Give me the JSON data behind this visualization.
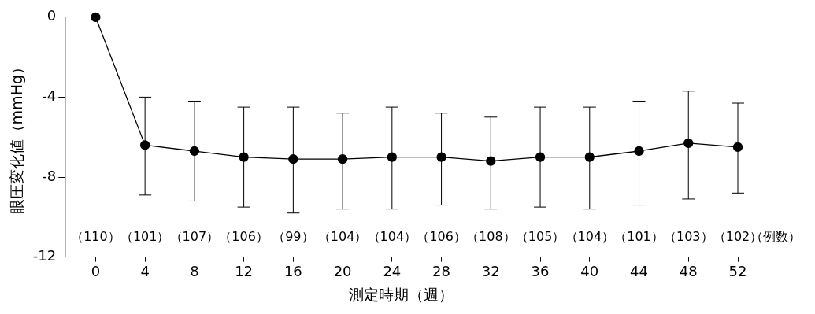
{
  "chart_data": {
    "type": "line",
    "xlabel": "測定時期（週）",
    "ylabel": "眼圧変化値（mmHg）",
    "x": [
      0,
      4,
      8,
      12,
      16,
      20,
      24,
      28,
      32,
      36,
      40,
      44,
      48,
      52
    ],
    "xlim": [
      -2.5,
      52
    ],
    "xticks": [
      0,
      4,
      8,
      12,
      16,
      20,
      24,
      28,
      32,
      36,
      40,
      44,
      48,
      52
    ],
    "ylim": [
      -12,
      0
    ],
    "yticks": [
      -12,
      -8,
      -4,
      0
    ],
    "series": [
      {
        "color": "#000000",
        "values": [
          0,
          -6.4,
          -6.7,
          -7.0,
          -7.1,
          -7.1,
          -7.0,
          -7.0,
          -7.2,
          -7.0,
          -7.0,
          -6.7,
          -6.3,
          -6.5
        ],
        "errors": [
          null,
          [
            -8.9,
            -4.0
          ],
          [
            -9.2,
            -4.2
          ],
          [
            -9.5,
            -4.5
          ],
          [
            -9.8,
            -4.5
          ],
          [
            -9.6,
            -4.8
          ],
          [
            -9.6,
            -4.5
          ],
          [
            -9.4,
            -4.8
          ],
          [
            -9.6,
            -5.0
          ],
          [
            -9.5,
            -4.5
          ],
          [
            -9.6,
            -4.5
          ],
          [
            -9.4,
            -4.2
          ],
          [
            -9.1,
            -3.7
          ],
          [
            -8.8,
            -4.3
          ]
        ]
      }
    ],
    "marker": "circle",
    "line_style": "solid",
    "grid": false,
    "legend": false,
    "annotations": [
      "（110）",
      "（101）",
      "（107）",
      "（106）",
      "（99）",
      "（104）",
      "（104）",
      "（106）",
      "（108）",
      "（105）",
      "（104）",
      "（101）",
      "（103）",
      "（102）",
      "（例数）"
    ]
  }
}
